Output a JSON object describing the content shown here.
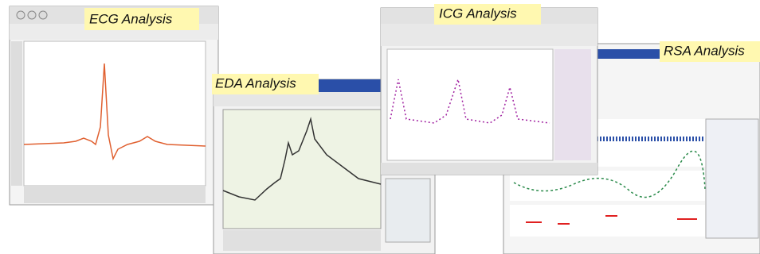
{
  "labels": {
    "ecg": "ECG Analysis",
    "eda": "EDA Analysis",
    "icg": "ICG Analysis",
    "rsa": "RSA Analysis"
  }
}
